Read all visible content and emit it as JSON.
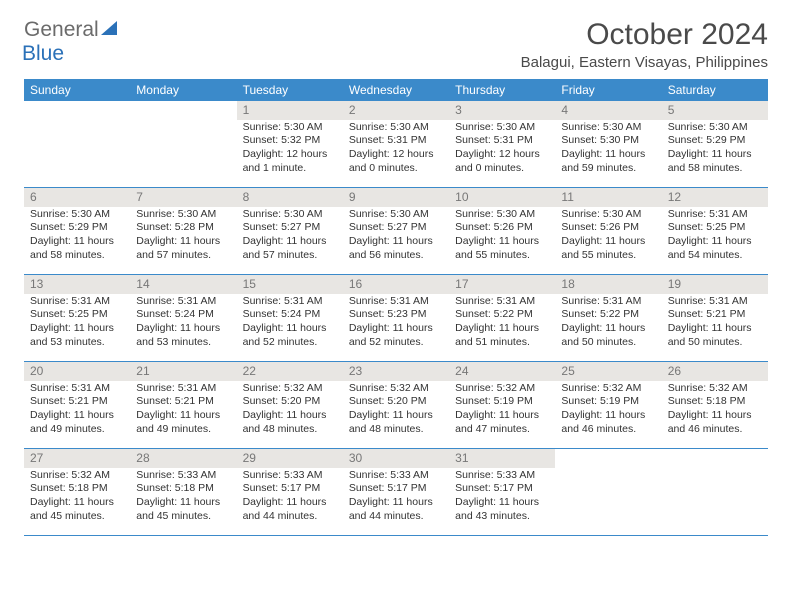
{
  "logo": {
    "text1": "General",
    "text2": "Blue"
  },
  "title": "October 2024",
  "location": "Balagui, Eastern Visayas, Philippines",
  "header_bg": "#3b8aca",
  "dayNames": [
    "Sunday",
    "Monday",
    "Tuesday",
    "Wednesday",
    "Thursday",
    "Friday",
    "Saturday"
  ],
  "weeks": [
    [
      null,
      null,
      {
        "n": "1",
        "sr": "Sunrise: 5:30 AM",
        "ss": "Sunset: 5:32 PM",
        "d1": "Daylight: 12 hours",
        "d2": "and 1 minute."
      },
      {
        "n": "2",
        "sr": "Sunrise: 5:30 AM",
        "ss": "Sunset: 5:31 PM",
        "d1": "Daylight: 12 hours",
        "d2": "and 0 minutes."
      },
      {
        "n": "3",
        "sr": "Sunrise: 5:30 AM",
        "ss": "Sunset: 5:31 PM",
        "d1": "Daylight: 12 hours",
        "d2": "and 0 minutes."
      },
      {
        "n": "4",
        "sr": "Sunrise: 5:30 AM",
        "ss": "Sunset: 5:30 PM",
        "d1": "Daylight: 11 hours",
        "d2": "and 59 minutes."
      },
      {
        "n": "5",
        "sr": "Sunrise: 5:30 AM",
        "ss": "Sunset: 5:29 PM",
        "d1": "Daylight: 11 hours",
        "d2": "and 58 minutes."
      }
    ],
    [
      {
        "n": "6",
        "sr": "Sunrise: 5:30 AM",
        "ss": "Sunset: 5:29 PM",
        "d1": "Daylight: 11 hours",
        "d2": "and 58 minutes."
      },
      {
        "n": "7",
        "sr": "Sunrise: 5:30 AM",
        "ss": "Sunset: 5:28 PM",
        "d1": "Daylight: 11 hours",
        "d2": "and 57 minutes."
      },
      {
        "n": "8",
        "sr": "Sunrise: 5:30 AM",
        "ss": "Sunset: 5:27 PM",
        "d1": "Daylight: 11 hours",
        "d2": "and 57 minutes."
      },
      {
        "n": "9",
        "sr": "Sunrise: 5:30 AM",
        "ss": "Sunset: 5:27 PM",
        "d1": "Daylight: 11 hours",
        "d2": "and 56 minutes."
      },
      {
        "n": "10",
        "sr": "Sunrise: 5:30 AM",
        "ss": "Sunset: 5:26 PM",
        "d1": "Daylight: 11 hours",
        "d2": "and 55 minutes."
      },
      {
        "n": "11",
        "sr": "Sunrise: 5:30 AM",
        "ss": "Sunset: 5:26 PM",
        "d1": "Daylight: 11 hours",
        "d2": "and 55 minutes."
      },
      {
        "n": "12",
        "sr": "Sunrise: 5:31 AM",
        "ss": "Sunset: 5:25 PM",
        "d1": "Daylight: 11 hours",
        "d2": "and 54 minutes."
      }
    ],
    [
      {
        "n": "13",
        "sr": "Sunrise: 5:31 AM",
        "ss": "Sunset: 5:25 PM",
        "d1": "Daylight: 11 hours",
        "d2": "and 53 minutes."
      },
      {
        "n": "14",
        "sr": "Sunrise: 5:31 AM",
        "ss": "Sunset: 5:24 PM",
        "d1": "Daylight: 11 hours",
        "d2": "and 53 minutes."
      },
      {
        "n": "15",
        "sr": "Sunrise: 5:31 AM",
        "ss": "Sunset: 5:24 PM",
        "d1": "Daylight: 11 hours",
        "d2": "and 52 minutes."
      },
      {
        "n": "16",
        "sr": "Sunrise: 5:31 AM",
        "ss": "Sunset: 5:23 PM",
        "d1": "Daylight: 11 hours",
        "d2": "and 52 minutes."
      },
      {
        "n": "17",
        "sr": "Sunrise: 5:31 AM",
        "ss": "Sunset: 5:22 PM",
        "d1": "Daylight: 11 hours",
        "d2": "and 51 minutes."
      },
      {
        "n": "18",
        "sr": "Sunrise: 5:31 AM",
        "ss": "Sunset: 5:22 PM",
        "d1": "Daylight: 11 hours",
        "d2": "and 50 minutes."
      },
      {
        "n": "19",
        "sr": "Sunrise: 5:31 AM",
        "ss": "Sunset: 5:21 PM",
        "d1": "Daylight: 11 hours",
        "d2": "and 50 minutes."
      }
    ],
    [
      {
        "n": "20",
        "sr": "Sunrise: 5:31 AM",
        "ss": "Sunset: 5:21 PM",
        "d1": "Daylight: 11 hours",
        "d2": "and 49 minutes."
      },
      {
        "n": "21",
        "sr": "Sunrise: 5:31 AM",
        "ss": "Sunset: 5:21 PM",
        "d1": "Daylight: 11 hours",
        "d2": "and 49 minutes."
      },
      {
        "n": "22",
        "sr": "Sunrise: 5:32 AM",
        "ss": "Sunset: 5:20 PM",
        "d1": "Daylight: 11 hours",
        "d2": "and 48 minutes."
      },
      {
        "n": "23",
        "sr": "Sunrise: 5:32 AM",
        "ss": "Sunset: 5:20 PM",
        "d1": "Daylight: 11 hours",
        "d2": "and 48 minutes."
      },
      {
        "n": "24",
        "sr": "Sunrise: 5:32 AM",
        "ss": "Sunset: 5:19 PM",
        "d1": "Daylight: 11 hours",
        "d2": "and 47 minutes."
      },
      {
        "n": "25",
        "sr": "Sunrise: 5:32 AM",
        "ss": "Sunset: 5:19 PM",
        "d1": "Daylight: 11 hours",
        "d2": "and 46 minutes."
      },
      {
        "n": "26",
        "sr": "Sunrise: 5:32 AM",
        "ss": "Sunset: 5:18 PM",
        "d1": "Daylight: 11 hours",
        "d2": "and 46 minutes."
      }
    ],
    [
      {
        "n": "27",
        "sr": "Sunrise: 5:32 AM",
        "ss": "Sunset: 5:18 PM",
        "d1": "Daylight: 11 hours",
        "d2": "and 45 minutes."
      },
      {
        "n": "28",
        "sr": "Sunrise: 5:33 AM",
        "ss": "Sunset: 5:18 PM",
        "d1": "Daylight: 11 hours",
        "d2": "and 45 minutes."
      },
      {
        "n": "29",
        "sr": "Sunrise: 5:33 AM",
        "ss": "Sunset: 5:17 PM",
        "d1": "Daylight: 11 hours",
        "d2": "and 44 minutes."
      },
      {
        "n": "30",
        "sr": "Sunrise: 5:33 AM",
        "ss": "Sunset: 5:17 PM",
        "d1": "Daylight: 11 hours",
        "d2": "and 44 minutes."
      },
      {
        "n": "31",
        "sr": "Sunrise: 5:33 AM",
        "ss": "Sunset: 5:17 PM",
        "d1": "Daylight: 11 hours",
        "d2": "and 43 minutes."
      },
      null,
      null
    ]
  ]
}
